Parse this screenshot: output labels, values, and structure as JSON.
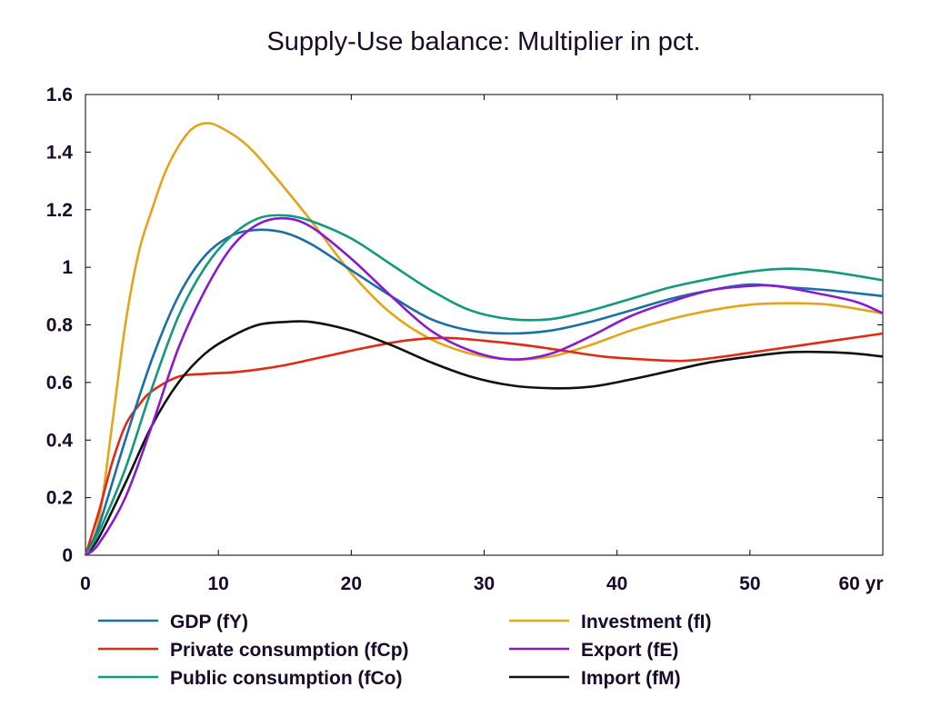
{
  "chart_data": {
    "type": "line",
    "title": "Supply-Use balance: Multiplier in pct.",
    "xlabel": "",
    "ylabel": "",
    "x_unit_label": "yr",
    "xlim": [
      0,
      60
    ],
    "ylim": [
      0,
      1.6
    ],
    "x_ticks": [
      0,
      10,
      20,
      30,
      40,
      50,
      60
    ],
    "y_ticks": [
      0,
      0.2,
      0.4,
      0.6,
      0.8,
      1,
      1.2,
      1.4,
      1.6
    ],
    "y_tick_labels": [
      "0",
      "0.2",
      "0.4",
      "0.6",
      "0.8",
      "1",
      "1.2",
      "1.4",
      "1.6"
    ],
    "grid": false,
    "legend_position": "bottom",
    "series": [
      {
        "name": "GDP (fY)",
        "color": "#1a6fa8",
        "points": [
          [
            0,
            0
          ],
          [
            1,
            0.1
          ],
          [
            3,
            0.4
          ],
          [
            5,
            0.68
          ],
          [
            7,
            0.9
          ],
          [
            9,
            1.04
          ],
          [
            11,
            1.11
          ],
          [
            13,
            1.13
          ],
          [
            15,
            1.12
          ],
          [
            17,
            1.08
          ],
          [
            20,
            0.99
          ],
          [
            23,
            0.9
          ],
          [
            26,
            0.82
          ],
          [
            29,
            0.78
          ],
          [
            32,
            0.77
          ],
          [
            35,
            0.78
          ],
          [
            38,
            0.81
          ],
          [
            41,
            0.85
          ],
          [
            44,
            0.89
          ],
          [
            47,
            0.92
          ],
          [
            50,
            0.94
          ],
          [
            53,
            0.93
          ],
          [
            56,
            0.92
          ],
          [
            60,
            0.9
          ]
        ]
      },
      {
        "name": "Investment (fI)",
        "color": "#e3a51a",
        "points": [
          [
            0,
            0
          ],
          [
            1,
            0.12
          ],
          [
            2,
            0.45
          ],
          [
            3,
            0.8
          ],
          [
            4,
            1.05
          ],
          [
            5,
            1.2
          ],
          [
            6,
            1.33
          ],
          [
            7,
            1.42
          ],
          [
            8,
            1.48
          ],
          [
            9,
            1.5
          ],
          [
            10,
            1.49
          ],
          [
            12,
            1.43
          ],
          [
            14,
            1.33
          ],
          [
            17,
            1.16
          ],
          [
            20,
            0.98
          ],
          [
            23,
            0.84
          ],
          [
            26,
            0.75
          ],
          [
            29,
            0.7
          ],
          [
            32,
            0.68
          ],
          [
            35,
            0.69
          ],
          [
            38,
            0.73
          ],
          [
            41,
            0.78
          ],
          [
            44,
            0.82
          ],
          [
            47,
            0.85
          ],
          [
            50,
            0.87
          ],
          [
            53,
            0.875
          ],
          [
            56,
            0.87
          ],
          [
            60,
            0.84
          ]
        ]
      },
      {
        "name": "Private consumption (fCp)",
        "color": "#e02a14",
        "points": [
          [
            0,
            0
          ],
          [
            1,
            0.15
          ],
          [
            2,
            0.32
          ],
          [
            3,
            0.45
          ],
          [
            4,
            0.52
          ],
          [
            5,
            0.57
          ],
          [
            7,
            0.62
          ],
          [
            9,
            0.63
          ],
          [
            11,
            0.635
          ],
          [
            13,
            0.645
          ],
          [
            15,
            0.66
          ],
          [
            18,
            0.69
          ],
          [
            21,
            0.72
          ],
          [
            24,
            0.745
          ],
          [
            27,
            0.755
          ],
          [
            30,
            0.745
          ],
          [
            33,
            0.73
          ],
          [
            36,
            0.71
          ],
          [
            39,
            0.69
          ],
          [
            42,
            0.68
          ],
          [
            45,
            0.675
          ],
          [
            48,
            0.69
          ],
          [
            51,
            0.71
          ],
          [
            54,
            0.73
          ],
          [
            57,
            0.75
          ],
          [
            60,
            0.77
          ]
        ]
      },
      {
        "name": "Export (fE)",
        "color": "#8a1ad0",
        "points": [
          [
            0,
            0
          ],
          [
            1,
            0.04
          ],
          [
            3,
            0.2
          ],
          [
            5,
            0.45
          ],
          [
            7,
            0.72
          ],
          [
            9,
            0.92
          ],
          [
            11,
            1.07
          ],
          [
            13,
            1.15
          ],
          [
            15,
            1.17
          ],
          [
            17,
            1.14
          ],
          [
            20,
            1.03
          ],
          [
            23,
            0.9
          ],
          [
            26,
            0.78
          ],
          [
            29,
            0.71
          ],
          [
            32,
            0.68
          ],
          [
            35,
            0.7
          ],
          [
            38,
            0.76
          ],
          [
            41,
            0.83
          ],
          [
            44,
            0.88
          ],
          [
            47,
            0.92
          ],
          [
            50,
            0.935
          ],
          [
            52,
            0.935
          ],
          [
            55,
            0.91
          ],
          [
            58,
            0.88
          ],
          [
            60,
            0.84
          ]
        ]
      },
      {
        "name": "Public consumption (fCo)",
        "color": "#129a7a",
        "points": [
          [
            0,
            0
          ],
          [
            1,
            0.08
          ],
          [
            3,
            0.3
          ],
          [
            5,
            0.58
          ],
          [
            7,
            0.83
          ],
          [
            9,
            1.0
          ],
          [
            11,
            1.11
          ],
          [
            13,
            1.17
          ],
          [
            15,
            1.18
          ],
          [
            17,
            1.16
          ],
          [
            20,
            1.1
          ],
          [
            23,
            1.01
          ],
          [
            26,
            0.92
          ],
          [
            29,
            0.85
          ],
          [
            32,
            0.82
          ],
          [
            35,
            0.82
          ],
          [
            38,
            0.85
          ],
          [
            41,
            0.89
          ],
          [
            44,
            0.93
          ],
          [
            47,
            0.96
          ],
          [
            50,
            0.985
          ],
          [
            53,
            0.995
          ],
          [
            56,
            0.985
          ],
          [
            60,
            0.955
          ]
        ]
      },
      {
        "name": "Import (fM)",
        "color": "#111111",
        "points": [
          [
            0,
            0
          ],
          [
            1,
            0.06
          ],
          [
            3,
            0.25
          ],
          [
            5,
            0.45
          ],
          [
            7,
            0.6
          ],
          [
            9,
            0.7
          ],
          [
            11,
            0.76
          ],
          [
            13,
            0.8
          ],
          [
            15,
            0.81
          ],
          [
            17,
            0.81
          ],
          [
            20,
            0.78
          ],
          [
            23,
            0.73
          ],
          [
            26,
            0.67
          ],
          [
            29,
            0.62
          ],
          [
            32,
            0.59
          ],
          [
            35,
            0.58
          ],
          [
            38,
            0.585
          ],
          [
            41,
            0.61
          ],
          [
            44,
            0.64
          ],
          [
            47,
            0.67
          ],
          [
            50,
            0.69
          ],
          [
            53,
            0.705
          ],
          [
            56,
            0.705
          ],
          [
            58,
            0.7
          ],
          [
            60,
            0.69
          ]
        ]
      }
    ],
    "legend_layout": [
      [
        "GDP (fY)",
        "Investment (fI)"
      ],
      [
        "Private consumption (fCp)",
        "Export (fE)"
      ],
      [
        "Public consumption (fCo)",
        "Import (fM)"
      ]
    ]
  }
}
